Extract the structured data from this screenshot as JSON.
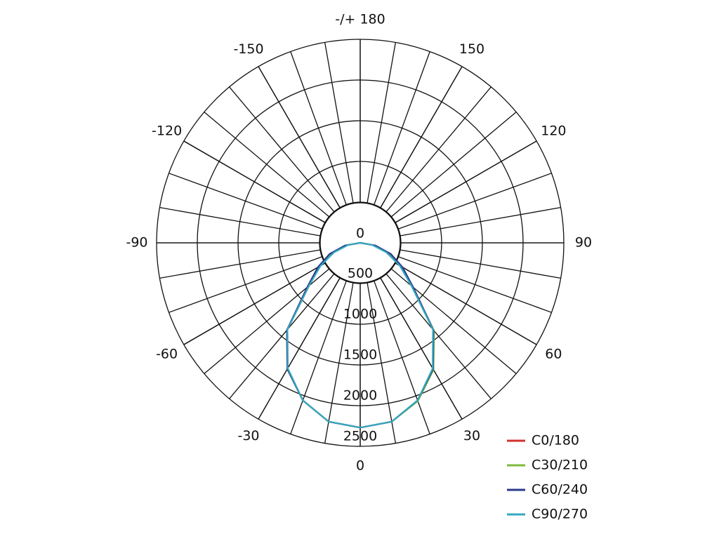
{
  "chart_data": {
    "type": "polar",
    "x": [
      -90,
      -80,
      -70,
      -60,
      -50,
      -40,
      -30,
      -20,
      -10,
      0,
      10,
      20,
      30,
      40,
      50,
      60,
      70,
      80,
      90
    ],
    "series": [
      {
        "name": "C0/180",
        "color": "#d0312d",
        "values": [
          0,
          160,
          360,
          570,
          820,
          1390,
          1780,
          2060,
          2230,
          2270,
          2230,
          2060,
          1790,
          1400,
          830,
          570,
          360,
          160,
          0
        ]
      },
      {
        "name": "C30/210",
        "color": "#7dbb3c",
        "values": [
          0,
          160,
          360,
          570,
          830,
          1400,
          1790,
          2060,
          2230,
          2270,
          2230,
          2070,
          1800,
          1410,
          840,
          580,
          360,
          160,
          0
        ]
      },
      {
        "name": "C60/240",
        "color": "#283a8a",
        "values": [
          0,
          190,
          400,
          600,
          850,
          1400,
          1790,
          2060,
          2230,
          2270,
          2230,
          2060,
          1790,
          1400,
          850,
          600,
          400,
          190,
          0
        ]
      },
      {
        "name": "C90/270",
        "color": "#35a8c0",
        "values": [
          0,
          150,
          340,
          560,
          820,
          1390,
          1780,
          2060,
          2230,
          2270,
          2230,
          2060,
          1780,
          1390,
          820,
          560,
          340,
          150,
          0
        ]
      }
    ],
    "rlim": [
      0,
      2500
    ],
    "rticks": [
      0,
      500,
      1000,
      1500,
      2000,
      2500
    ],
    "angle_ticks": [
      {
        "value": 180,
        "label": "-/+ 180"
      },
      -150,
      150,
      -120,
      120,
      -90,
      90,
      -60,
      60,
      -30,
      30,
      0
    ],
    "legend": "bottom-right"
  }
}
